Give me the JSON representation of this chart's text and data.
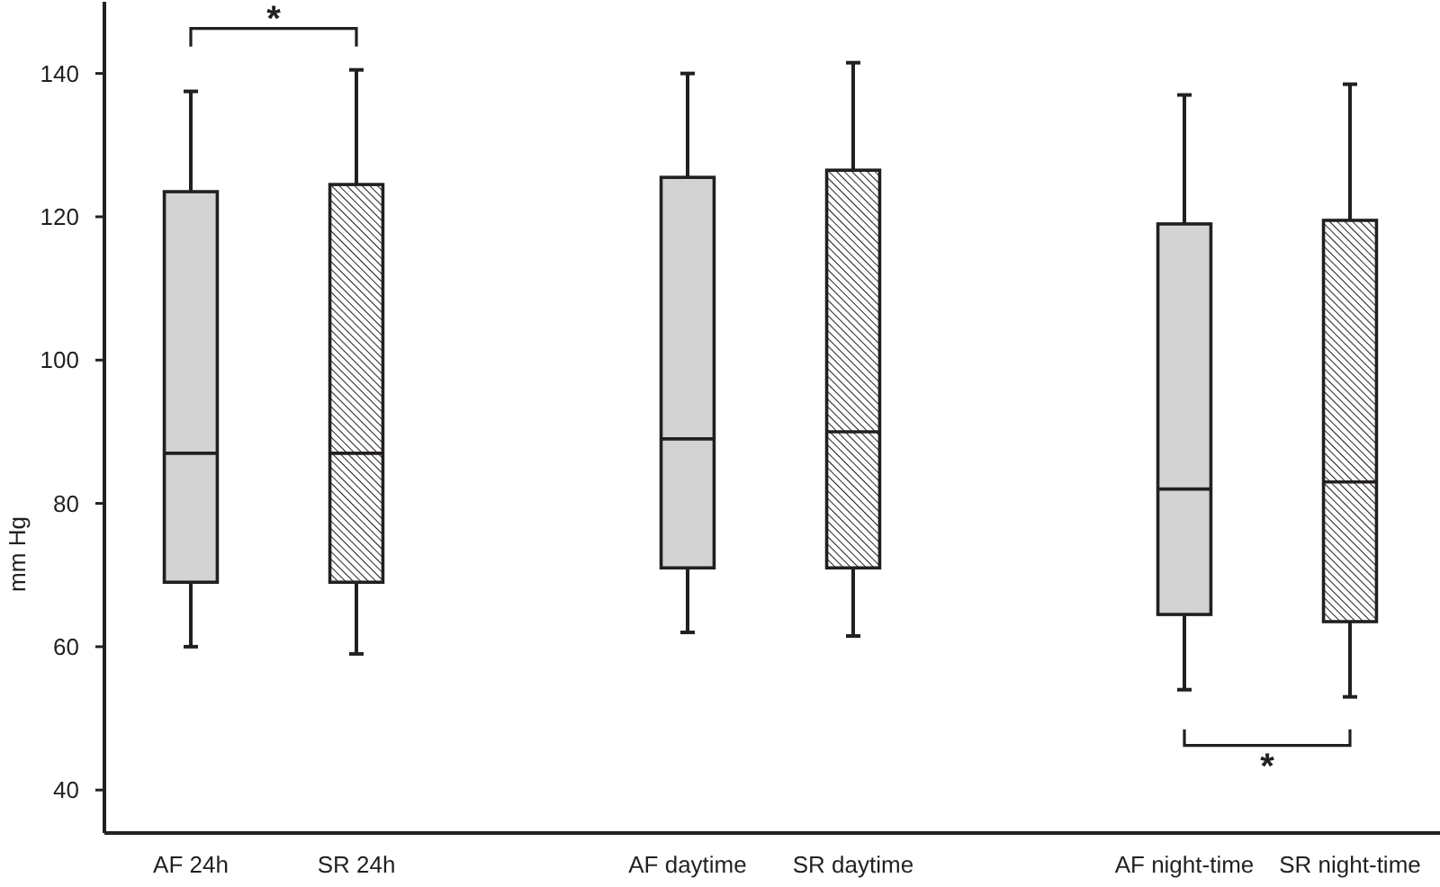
{
  "chart_data": {
    "type": "box",
    "ylabel": "mm Hg",
    "categories": [
      "AF 24h",
      "SR 24h",
      null,
      "AF daytime",
      "SR daytime",
      null,
      "AF night-time",
      "SR night-time"
    ],
    "series": [
      {
        "color": "#d3d3d3",
        "boxes": [
          {
            "low": 60,
            "q1": 69,
            "median": 87,
            "q3": 123.5,
            "high": 137.5
          },
          null,
          null,
          {
            "low": 62,
            "q1": 71,
            "median": 89,
            "q3": 125.5,
            "high": 140
          },
          null,
          null,
          {
            "low": 54,
            "q1": 64.5,
            "median": 82,
            "q3": 119,
            "high": 137
          },
          null
        ]
      },
      {
        "color": "#231f20",
        "boxes": [
          null,
          {
            "low": 59,
            "q1": 69,
            "median": 87,
            "q3": 124.5,
            "high": 140.5
          },
          null,
          null,
          {
            "low": 61.5,
            "q1": 71,
            "median": 90,
            "q3": 126.5,
            "high": 141.5
          },
          null,
          null,
          {
            "low": 53,
            "q1": 63.5,
            "median": 83,
            "q3": 119.5,
            "high": 138.5
          }
        ]
      }
    ],
    "ylim": [
      34,
      150
    ],
    "yticks": [
      40,
      60,
      80,
      100,
      120,
      140
    ],
    "annotations": [
      "*",
      "*"
    ]
  }
}
